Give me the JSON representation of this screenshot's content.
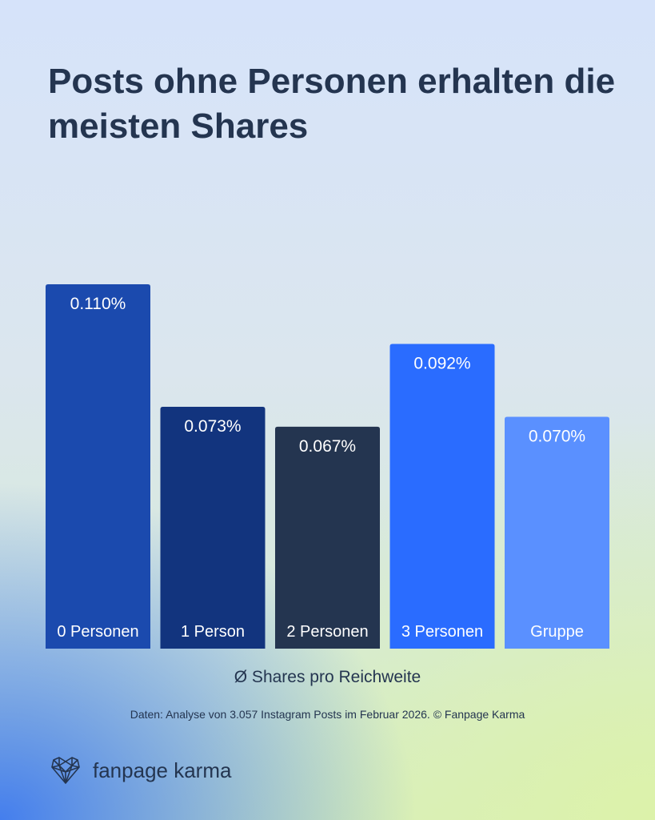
{
  "title": "Posts ohne Personen erhalten die meisten Shares",
  "chart_data": {
    "type": "bar",
    "categories": [
      "0 Personen",
      "1 Person",
      "2 Personen",
      "3 Personen",
      "Gruppe"
    ],
    "values": [
      0.11,
      0.073,
      0.067,
      0.092,
      0.07
    ],
    "data_labels": [
      "0.110%",
      "0.073%",
      "0.067%",
      "0.092%",
      "0.070%"
    ],
    "colors": [
      "#1b4aae",
      "#12347e",
      "#243550",
      "#2a6cff",
      "#5a90ff"
    ],
    "xlabel": "Ø Shares pro Reichweite",
    "ylabel": "",
    "ylim": [
      0,
      0.11
    ],
    "grid": false,
    "unit": "%"
  },
  "source": "Daten: Analyse von 3.057 Instagram Posts im Februar 2026. © Fanpage Karma",
  "logo": {
    "text": "fanpage karma",
    "icon": "heart-network-icon"
  }
}
